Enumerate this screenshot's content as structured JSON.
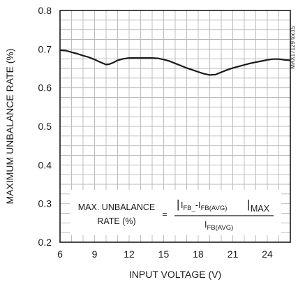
{
  "chart_data": {
    "type": "line",
    "xlabel": "INPUT VOLTAGE (V)",
    "ylabel": "MAXIMUM UNBALANCE RATE (%)",
    "xlim": [
      6,
      26
    ],
    "ylim": [
      0.2,
      0.8
    ],
    "xticks": [
      "6",
      "9",
      "12",
      "15",
      "18",
      "21",
      "24"
    ],
    "yticks": [
      "0.2",
      "0.3",
      "0.4",
      "0.5",
      "0.6",
      "0.7",
      "0.8"
    ],
    "grid": true,
    "id_tag": "MAX17129 toc15",
    "series": [
      {
        "x": [
          6,
          6.5,
          7,
          7.5,
          8,
          8.5,
          9,
          9.5,
          10,
          10.3,
          10.7,
          11,
          11.5,
          12,
          13,
          14,
          14.5,
          15,
          15.5,
          16,
          16.5,
          17,
          17.5,
          18,
          18.5,
          19,
          19.5,
          20,
          20.5,
          21,
          21.5,
          22,
          22.5,
          23,
          23.5,
          24,
          24.5,
          25,
          25.5,
          26
        ],
        "y": [
          0.697,
          0.696,
          0.692,
          0.688,
          0.683,
          0.679,
          0.673,
          0.666,
          0.66,
          0.661,
          0.666,
          0.671,
          0.675,
          0.677,
          0.677,
          0.677,
          0.676,
          0.673,
          0.669,
          0.663,
          0.657,
          0.651,
          0.646,
          0.641,
          0.636,
          0.633,
          0.634,
          0.64,
          0.646,
          0.651,
          0.655,
          0.659,
          0.663,
          0.666,
          0.669,
          0.672,
          0.674,
          0.674,
          0.672,
          0.671
        ]
      }
    ],
    "annotation": {
      "lhs_line1": "MAX. UNBALANCE",
      "lhs_line2": "RATE (%)",
      "equals": "=",
      "num_open": "|",
      "num_a": "I",
      "num_a_sub": "FB_",
      "num_dash": "-I",
      "num_b_sub": "FB(AVG)",
      "num_close": "|",
      "num_max": "MAX",
      "den_a": "I",
      "den_sub": "FB(AVG)"
    }
  }
}
